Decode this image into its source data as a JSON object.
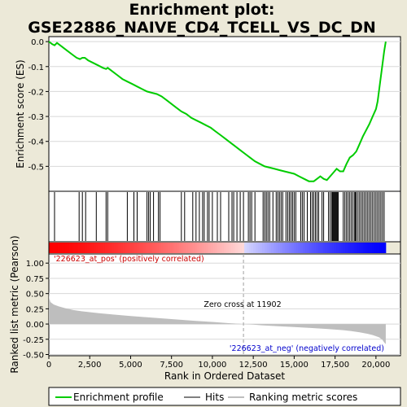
{
  "chart_data": {
    "type": "line",
    "title_line1": "Enrichment plot:",
    "title_line2": "GSE22886_NAIVE_CD4_TCELL_VS_DC_DN",
    "ylabel_top": "Enrichment score (ES)",
    "ylabel_bottom": "Ranked list metric (Pearson)",
    "xlabel": "Rank in Ordered Dataset",
    "x_range": [
      0,
      21500
    ],
    "es_ylim": [
      -0.6,
      0.02
    ],
    "metric_ylim": [
      -0.52,
      1.15
    ],
    "es_yticks": [
      "0.0",
      "-0.1",
      "-0.2",
      "-0.3",
      "-0.4",
      "-0.5"
    ],
    "es_ytick_values": [
      0.0,
      -0.1,
      -0.2,
      -0.3,
      -0.4,
      -0.5
    ],
    "metric_yticks": [
      "1.00",
      "0.75",
      "0.50",
      "0.25",
      "0.00",
      "-0.25",
      "-0.50"
    ],
    "metric_ytick_values": [
      1.0,
      0.75,
      0.5,
      0.25,
      0.0,
      -0.25,
      -0.5
    ],
    "xticks": [
      "0",
      "2,500",
      "5,000",
      "7,500",
      "10,000",
      "12,500",
      "15,000",
      "17,500",
      "20,000"
    ],
    "xtick_values": [
      0,
      2500,
      5000,
      7500,
      10000,
      12500,
      15000,
      17500,
      20000
    ],
    "n_genes": 20600,
    "zero_cross": 11902,
    "zero_cross_label": "Zero cross at 11902",
    "pos_label": "'226623_at_pos' (positively correlated)",
    "neg_label": "'226623_at_neg' (negatively correlated)",
    "enrichment_profile": {
      "x": [
        0,
        200,
        350,
        500,
        800,
        1100,
        1400,
        1700,
        1900,
        2050,
        2200,
        2400,
        2700,
        3000,
        3300,
        3500,
        3600,
        3900,
        4200,
        4500,
        4800,
        5100,
        5400,
        5700,
        6000,
        6300,
        6600,
        6900,
        7200,
        7500,
        7800,
        8100,
        8400,
        8700,
        9000,
        9300,
        9600,
        9900,
        10200,
        10500,
        10800,
        11100,
        11400,
        11700,
        12000,
        12300,
        12600,
        12900,
        13200,
        13500,
        13800,
        14100,
        14400,
        14700,
        15000,
        15300,
        15600,
        15900,
        16200,
        16400,
        16600,
        16800,
        17000,
        17200,
        17400,
        17600,
        17800,
        18000,
        18200,
        18400,
        18600,
        18800,
        19000,
        19200,
        19400,
        19600,
        19800,
        20000,
        20100,
        20200,
        20300,
        20400,
        20500,
        20600
      ],
      "y": [
        0.0,
        -0.01,
        -0.015,
        -0.005,
        -0.02,
        -0.035,
        -0.05,
        -0.065,
        -0.07,
        -0.065,
        -0.065,
        -0.075,
        -0.085,
        -0.095,
        -0.105,
        -0.11,
        -0.105,
        -0.12,
        -0.135,
        -0.15,
        -0.16,
        -0.17,
        -0.18,
        -0.19,
        -0.2,
        -0.205,
        -0.21,
        -0.22,
        -0.235,
        -0.25,
        -0.265,
        -0.28,
        -0.29,
        -0.305,
        -0.315,
        -0.325,
        -0.335,
        -0.345,
        -0.36,
        -0.375,
        -0.39,
        -0.405,
        -0.42,
        -0.435,
        -0.45,
        -0.465,
        -0.48,
        -0.49,
        -0.5,
        -0.505,
        -0.51,
        -0.515,
        -0.52,
        -0.525,
        -0.53,
        -0.54,
        -0.55,
        -0.56,
        -0.56,
        -0.55,
        -0.54,
        -0.55,
        -0.555,
        -0.54,
        -0.525,
        -0.51,
        -0.52,
        -0.52,
        -0.49,
        -0.465,
        -0.455,
        -0.44,
        -0.41,
        -0.38,
        -0.355,
        -0.33,
        -0.3,
        -0.27,
        -0.24,
        -0.19,
        -0.14,
        -0.09,
        -0.04,
        0.0
      ]
    },
    "hits": [
      350,
      1850,
      2050,
      2250,
      2900,
      3500,
      3600,
      4800,
      5200,
      5400,
      6000,
      6100,
      6200,
      6400,
      6700,
      6800,
      8100,
      8300,
      8800,
      9000,
      9200,
      9400,
      9500,
      9700,
      9800,
      10000,
      10300,
      10500,
      11000,
      11200,
      11300,
      11500,
      11700,
      11900,
      12200,
      12300,
      12400,
      12600,
      13100,
      13200,
      13300,
      13400,
      13500,
      13700,
      13900,
      14000,
      14100,
      14200,
      14300,
      14500,
      14600,
      14700,
      14800,
      14900,
      15000,
      15100,
      15400,
      15500,
      15600,
      15800,
      16000,
      16100,
      16200,
      16300,
      16400,
      16500,
      16700,
      16800,
      17100,
      17200,
      17300,
      17350,
      17400,
      17450,
      17500,
      17550,
      17600,
      17650,
      17700,
      18000,
      18100,
      18200,
      18300,
      18400,
      18500,
      18600,
      18700,
      18750,
      18800,
      18900,
      19000,
      19100,
      19200,
      19300,
      19400,
      19500,
      19600,
      19700,
      19800,
      19900,
      20000,
      20100,
      20200,
      20300,
      20400,
      20500
    ],
    "metric_profile": {
      "x": [
        0,
        30,
        100,
        300,
        600,
        1000,
        1500,
        2000,
        2500,
        3000,
        4000,
        5000,
        6000,
        7000,
        8000,
        9000,
        10000,
        11000,
        11902,
        12500,
        13000,
        14000,
        15000,
        16000,
        17000,
        18000,
        18500,
        19000,
        19500,
        19800,
        20000,
        20200,
        20400,
        20500,
        20600
      ],
      "y": [
        0.55,
        0.42,
        0.36,
        0.32,
        0.29,
        0.26,
        0.23,
        0.21,
        0.195,
        0.18,
        0.155,
        0.13,
        0.11,
        0.09,
        0.07,
        0.05,
        0.035,
        0.015,
        0.0,
        -0.01,
        -0.02,
        -0.035,
        -0.05,
        -0.065,
        -0.08,
        -0.1,
        -0.115,
        -0.135,
        -0.16,
        -0.18,
        -0.2,
        -0.22,
        -0.26,
        -0.3,
        -0.33
      ]
    },
    "legend": [
      "Enrichment profile",
      "Hits",
      "Ranking metric scores"
    ],
    "colors": {
      "profile": "#00cc00",
      "hits": "#000000",
      "metric_fill": "#bebebe",
      "pos_text": "#cc0000",
      "neg_text": "#0000cc",
      "zero_line": "#a0a0a0",
      "bar_red": "#ff0000",
      "bar_blue": "#0000ff"
    }
  }
}
